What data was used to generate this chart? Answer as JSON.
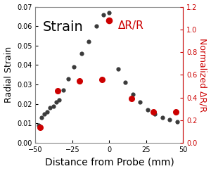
{
  "strain_x": [
    -48,
    -46,
    -44,
    -42,
    -40,
    -38,
    -36,
    -34,
    -31,
    -28,
    -24,
    -19,
    -14,
    -9,
    -4,
    0,
    6,
    11,
    16,
    21,
    26,
    31,
    36,
    41,
    46
  ],
  "strain_y": [
    0.009,
    0.013,
    0.015,
    0.016,
    0.018,
    0.019,
    0.021,
    0.022,
    0.027,
    0.033,
    0.039,
    0.046,
    0.052,
    0.06,
    0.066,
    0.067,
    0.038,
    0.031,
    0.025,
    0.021,
    0.017,
    0.015,
    0.013,
    0.012,
    0.011
  ],
  "delta_r_x": [
    -47,
    -35,
    -20,
    -5,
    15,
    30,
    45
  ],
  "delta_r_y_right": [
    0.137,
    0.457,
    0.549,
    0.56,
    0.389,
    0.274,
    0.274
  ],
  "xlabel": "Distance from Probe (mm)",
  "ylabel_left": "Radial Strain",
  "ylabel_right": "Normalized ΔR/R",
  "legend_strain": "Strain",
  "legend_delta": "ΔR/R",
  "xlim": [
    -50,
    50
  ],
  "ylim_left": [
    0,
    0.07
  ],
  "ylim_right": [
    0,
    1.2
  ],
  "yticks_left": [
    0,
    0.01,
    0.02,
    0.03,
    0.04,
    0.05,
    0.06,
    0.07
  ],
  "yticks_right": [
    0,
    0.2,
    0.4,
    0.6,
    0.8,
    1.0,
    1.2
  ],
  "xticks": [
    -50,
    -25,
    0,
    25,
    50
  ],
  "strain_color": "#3a3a3a",
  "delta_r_color": "#cc0000",
  "spine_color": "#888888",
  "dot_size_strain": 12,
  "dot_size_delta": 30,
  "background_color": "#ffffff",
  "xlabel_fontsize": 10,
  "ylabel_fontsize": 9,
  "tick_fontsize": 7,
  "legend_strain_fontsize": 14,
  "legend_delta_fontsize": 11
}
